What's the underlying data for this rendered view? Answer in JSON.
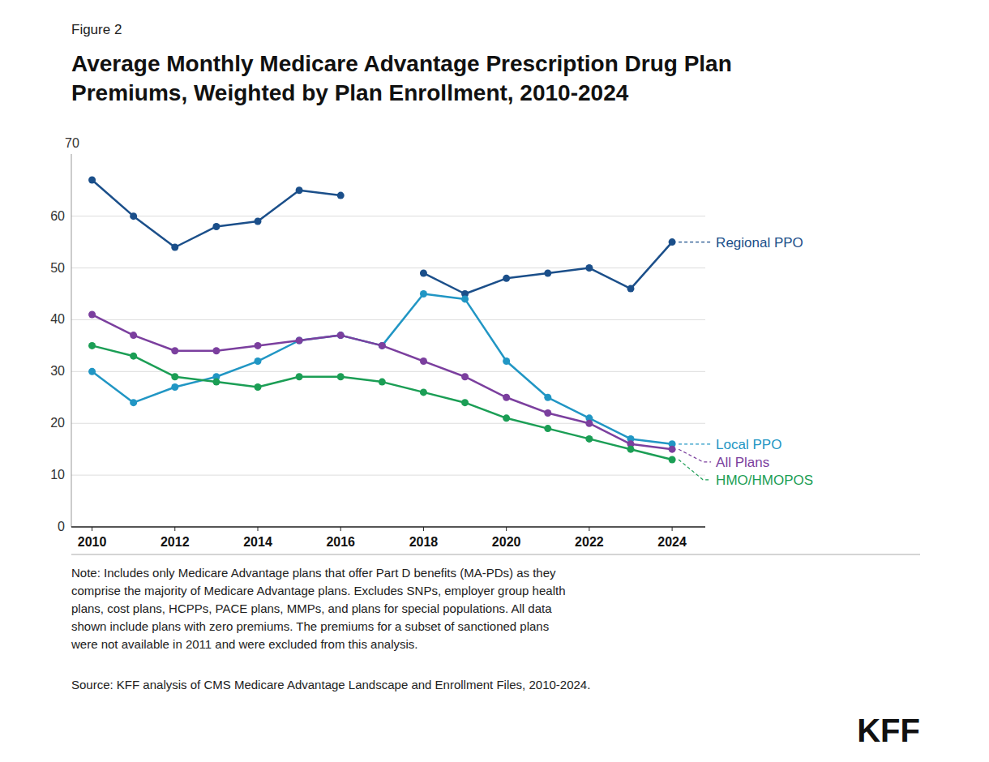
{
  "chart_data": {
    "type": "line",
    "label": "Figure 2",
    "title": "Average Monthly Medicare Advantage Prescription Drug Plan\nPremiums, Weighted by Plan Enrollment, 2010-2024",
    "ylabel": "70",
    "x": [
      2010,
      2011,
      2012,
      2013,
      2014,
      2015,
      2016,
      2017,
      2018,
      2019,
      2020,
      2021,
      2022,
      2023,
      2024
    ],
    "series": [
      {
        "name": "Regional PPO",
        "color": "#1B4F8A",
        "values": [
          67,
          60,
          54,
          58,
          59,
          65,
          64,
          null,
          49,
          45,
          48,
          49,
          50,
          46,
          55
        ]
      },
      {
        "name": "Local PPO",
        "color": "#2196C4",
        "values": [
          30,
          24,
          27,
          29,
          32,
          36,
          37,
          35,
          45,
          44,
          32,
          25,
          21,
          17,
          16
        ]
      },
      {
        "name": "All Plans",
        "color": "#7B3F9E",
        "values": [
          41,
          37,
          34,
          34,
          35,
          36,
          37,
          35,
          32,
          29,
          25,
          22,
          20,
          16,
          15
        ]
      },
      {
        "name": "HMO/HMOPOS",
        "color": "#1B9E55",
        "values": [
          35,
          33,
          29,
          28,
          27,
          29,
          29,
          28,
          26,
          24,
          21,
          19,
          17,
          15,
          13
        ]
      }
    ],
    "xlim": [
      2009.5,
      2024.8
    ],
    "xticks": [
      2010,
      2012,
      2014,
      2016,
      2018,
      2020,
      2022,
      2024
    ],
    "ylim": [
      0,
      72
    ],
    "yticks": [
      0,
      10,
      20,
      30,
      40,
      50,
      60
    ],
    "grid": true,
    "legend": "right",
    "marker": "circle",
    "line_style": "solid",
    "note": "Note: Includes only Medicare Advantage plans that offer Part D benefits (MA-PDs) as they\ncomprise the majority of Medicare Advantage plans. Excludes SNPs, employer group health\nplans, cost plans, HCPPs, PACE plans, MMPs, and plans for special populations. All data\nshown include plans with zero premiums. The premiums for a subset of sanctioned plans\nwere not available in 2011 and were excluded from this analysis.",
    "source": "Source: KFF analysis of CMS Medicare Advantage Landscape and Enrollment Files, 2010-2024.",
    "logo": "KFF"
  }
}
